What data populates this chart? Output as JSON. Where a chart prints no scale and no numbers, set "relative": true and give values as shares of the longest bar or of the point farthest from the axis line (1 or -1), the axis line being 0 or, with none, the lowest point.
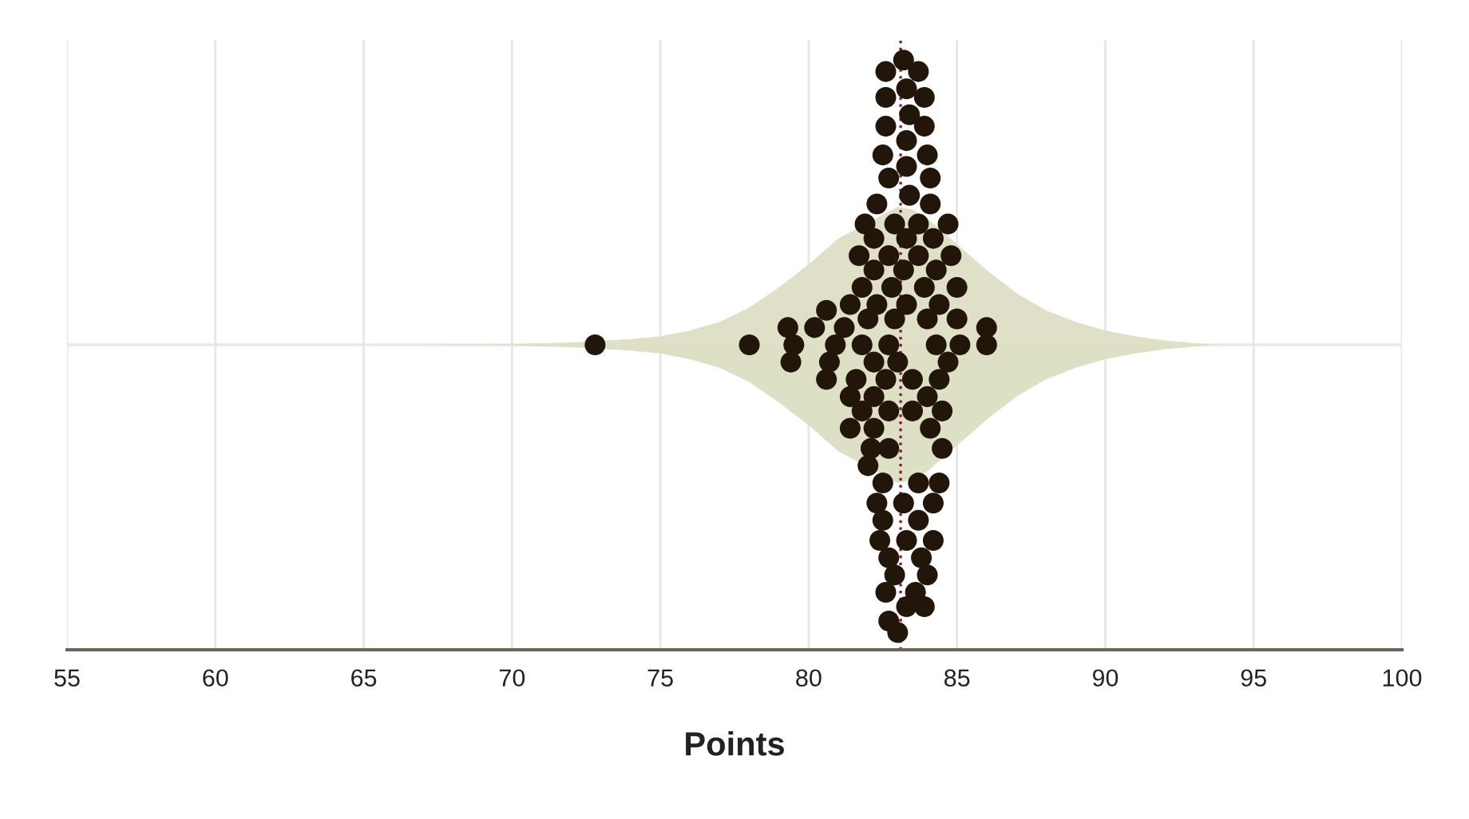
{
  "chart_data": {
    "type": "scatter",
    "xlabel": "Points",
    "relative": true,
    "grid": "x",
    "xlim": [
      55,
      100
    ],
    "xticks": [
      55,
      60,
      65,
      70,
      75,
      80,
      85,
      90,
      95,
      100
    ],
    "ref_lines": [
      {
        "axis": "x",
        "value": 83.1,
        "color": "#8b1a2b",
        "line_style": "dotted"
      }
    ],
    "series": [
      {
        "type": "area",
        "color": "#dfe0c7",
        "x": [
          67.2,
          70,
          72,
          74,
          75,
          76,
          77,
          78,
          79,
          80,
          81,
          83,
          83.5,
          84,
          85,
          86,
          87,
          88,
          89,
          90,
          91,
          92,
          93,
          93.7
        ],
        "values": [
          0,
          0.003,
          0.008,
          0.02,
          0.03,
          0.05,
          0.08,
          0.13,
          0.2,
          0.28,
          0.37,
          0.48,
          0.47,
          0.44,
          0.35,
          0.26,
          0.18,
          0.12,
          0.08,
          0.05,
          0.03,
          0.015,
          0.006,
          0
        ]
      },
      {
        "type": "area",
        "color": "#dee0c5",
        "x": [
          67.2,
          70,
          72,
          74,
          75,
          76,
          77,
          78,
          79,
          80,
          81,
          83,
          83.5,
          84,
          85,
          86,
          87,
          88,
          89,
          90,
          91,
          92,
          93,
          93.7
        ],
        "values": [
          0,
          -0.003,
          -0.008,
          -0.02,
          -0.03,
          -0.05,
          -0.08,
          -0.13,
          -0.2,
          -0.28,
          -0.37,
          -0.48,
          -0.47,
          -0.44,
          -0.35,
          -0.26,
          -0.18,
          -0.12,
          -0.08,
          -0.05,
          -0.03,
          -0.015,
          -0.006,
          0
        ]
      },
      {
        "color": "#221509",
        "marker": "circle",
        "x": [
          83.2,
          82.6,
          83.7,
          83.3,
          82.6,
          83.9,
          83.4,
          82.6,
          83.9,
          83.3,
          82.5,
          84.0,
          83.3,
          82.7,
          84.1,
          83.4,
          82.3,
          84.1,
          81.9,
          82.9,
          83.7,
          84.7,
          82.2,
          83.3,
          84.2,
          81.7,
          82.7,
          83.7,
          84.8,
          82.2,
          83.2,
          84.3,
          81.8,
          82.8,
          83.9,
          85.0,
          81.4,
          82.3,
          83.3,
          84.4,
          80.6,
          82.0,
          82.9,
          84.0,
          85.0,
          79.3,
          80.2,
          81.2,
          86.0,
          72.8,
          78.0,
          79.5,
          80.9,
          81.8,
          82.7,
          84.3,
          85.1,
          86.0,
          79.4,
          80.7,
          82.2,
          83.0,
          84.7,
          80.6,
          81.6,
          82.6,
          83.5,
          84.4,
          81.4,
          82.2,
          84.0,
          81.8,
          82.7,
          83.5,
          84.5,
          81.4,
          82.2,
          84.1,
          82.1,
          82.7,
          84.5,
          82.0,
          82.5,
          83.7,
          84.4,
          82.3,
          83.2,
          84.2,
          82.5,
          83.7,
          82.4,
          83.3,
          84.2,
          82.7,
          83.8,
          82.9,
          84.0,
          82.6,
          83.6,
          83.3,
          83.9,
          82.7,
          83.0
        ],
        "values": [
          0.99,
          0.95,
          0.95,
          0.89,
          0.86,
          0.86,
          0.8,
          0.76,
          0.76,
          0.71,
          0.66,
          0.66,
          0.62,
          0.58,
          0.58,
          0.52,
          0.49,
          0.49,
          0.42,
          0.42,
          0.42,
          0.42,
          0.37,
          0.37,
          0.37,
          0.31,
          0.31,
          0.31,
          0.31,
          0.26,
          0.26,
          0.26,
          0.2,
          0.2,
          0.2,
          0.2,
          0.14,
          0.14,
          0.14,
          0.14,
          0.12,
          0.09,
          0.09,
          0.09,
          0.09,
          0.06,
          0.06,
          0.06,
          0.06,
          0,
          0,
          0,
          0,
          0,
          0,
          0,
          0,
          0,
          -0.06,
          -0.06,
          -0.06,
          -0.06,
          -0.06,
          -0.12,
          -0.12,
          -0.12,
          -0.12,
          -0.12,
          -0.18,
          -0.18,
          -0.18,
          -0.23,
          -0.23,
          -0.23,
          -0.23,
          -0.29,
          -0.29,
          -0.29,
          -0.36,
          -0.36,
          -0.36,
          -0.42,
          -0.48,
          -0.48,
          -0.48,
          -0.55,
          -0.55,
          -0.55,
          -0.61,
          -0.61,
          -0.68,
          -0.68,
          -0.68,
          -0.74,
          -0.74,
          -0.8,
          -0.8,
          -0.86,
          -0.86,
          -0.91,
          -0.91,
          -0.96,
          -1.0
        ]
      }
    ]
  }
}
